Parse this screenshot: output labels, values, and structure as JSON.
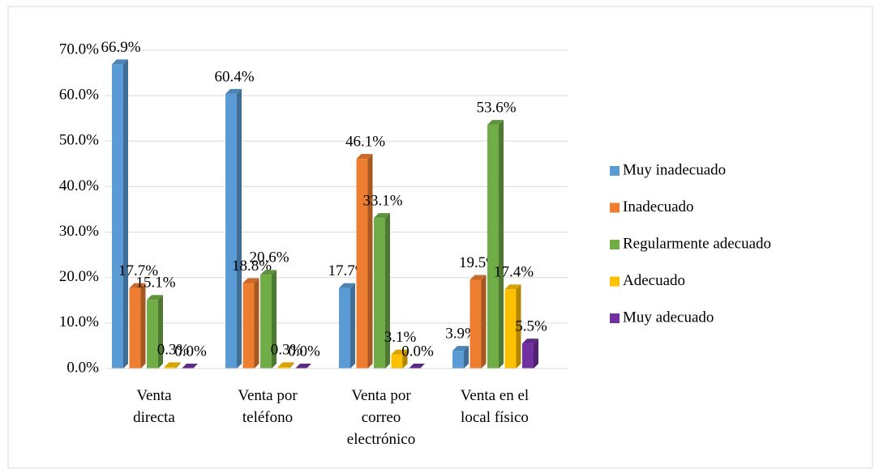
{
  "chart_data": {
    "type": "bar3d",
    "categories": [
      "Venta directa",
      "Venta por teléfono",
      "Venta por correo electrónico",
      "Venta en el local físico"
    ],
    "series": [
      {
        "name": "Muy inadecuado",
        "color": "#5b9bd5",
        "values": [
          66.9,
          60.4,
          17.7,
          3.9
        ],
        "value_labels": [
          "66.9%",
          "60.4%",
          "17.7%",
          "3.9%"
        ]
      },
      {
        "name": "Inadecuado",
        "color": "#ed7d31",
        "values": [
          17.7,
          18.8,
          46.1,
          19.5
        ],
        "value_labels": [
          "17.7%",
          "18.8%",
          "46.1%",
          "19.5%"
        ]
      },
      {
        "name": "Regularmente adecuado",
        "color": "#70ad47",
        "values": [
          15.1,
          20.6,
          33.1,
          53.6
        ],
        "value_labels": [
          "15.1%",
          "20.6%",
          "33.1%",
          "53.6%"
        ]
      },
      {
        "name": "Adecuado",
        "color": "#ffc000",
        "values": [
          0.3,
          0.3,
          3.1,
          17.4
        ],
        "value_labels": [
          "0.3%",
          "0.3%",
          "3.1%",
          "17.4%"
        ]
      },
      {
        "name": "Muy adecuado",
        "color": "#7030a0",
        "values": [
          0.0,
          0.0,
          0.0,
          5.5
        ],
        "value_labels": [
          "0.0%",
          "0.0%",
          "0.0%",
          "5.5%"
        ]
      }
    ],
    "ylim": [
      0,
      70
    ],
    "yticks": [
      {
        "value": 0,
        "label": "0.0%"
      },
      {
        "value": 10,
        "label": "10.0%"
      },
      {
        "value": 20,
        "label": "20.0%"
      },
      {
        "value": 30,
        "label": "30.0%"
      },
      {
        "value": 40,
        "label": "40.0%"
      },
      {
        "value": 50,
        "label": "50.0%"
      },
      {
        "value": 60,
        "label": "60.0%"
      },
      {
        "value": 70,
        "label": "70.0%"
      }
    ],
    "grid": true,
    "legend": "right"
  }
}
